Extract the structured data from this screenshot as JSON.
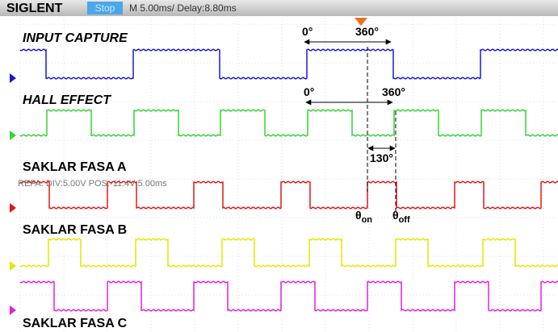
{
  "header": {
    "brand": "SIGLENT",
    "status": "Stop",
    "timebase": "M 5.00ms/ Delay:8.80ms"
  },
  "channels": [
    "INPUT CAPTURE",
    "HALL EFFECT",
    "SAKLAR FASA A",
    "SAKLAR FASA B",
    "SAKLAR FASA C"
  ],
  "reference": "REFA: DIV:5.00V POS:-11.4V 5.00ms",
  "annotations": {
    "start_1": "0°",
    "end_1": "360°",
    "start_2": "0°",
    "end_2": "360°",
    "width": "130°",
    "theta": "θ",
    "on": "on",
    "off": "off"
  }
}
